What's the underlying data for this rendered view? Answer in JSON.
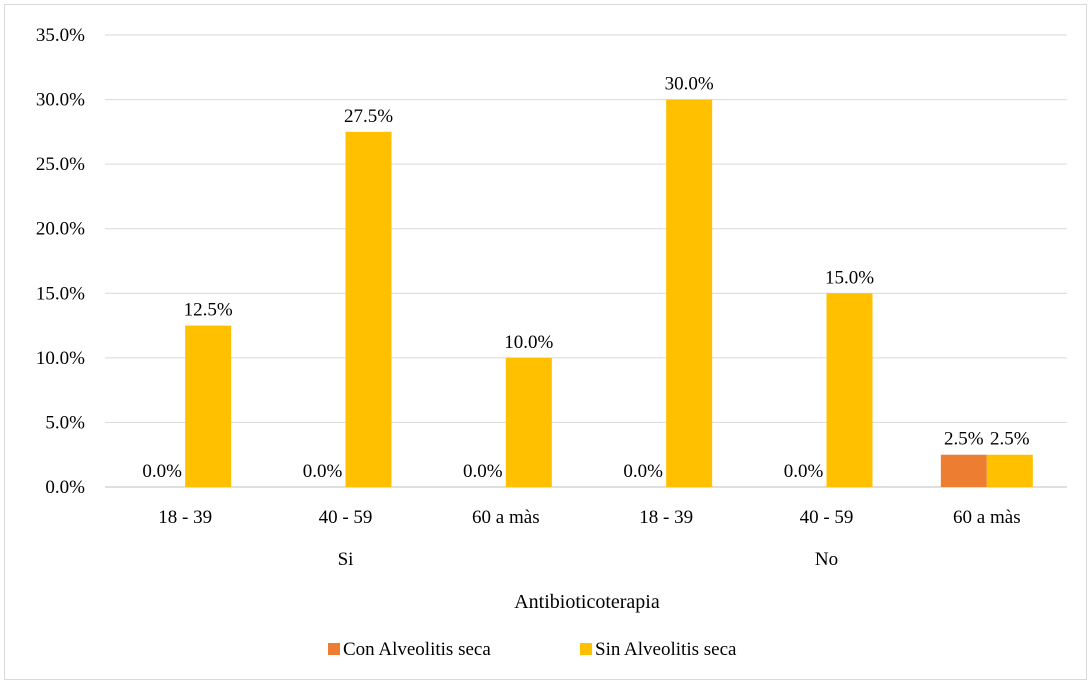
{
  "chart_data": {
    "type": "bar",
    "xlabel": "Antibioticoterapia",
    "ylabel": "",
    "ylim": [
      0,
      35
    ],
    "yticks": [
      "0.0%",
      "5.0%",
      "10.0%",
      "15.0%",
      "20.0%",
      "25.0%",
      "30.0%",
      "35.0%"
    ],
    "y_tick_values": [
      0,
      5,
      10,
      15,
      20,
      25,
      30,
      35
    ],
    "groups": [
      {
        "label": "Si",
        "categories": [
          "18 - 39",
          "40 - 59",
          "60 a màs"
        ]
      },
      {
        "label": "No",
        "categories": [
          "18 - 39",
          "40 - 59",
          "60 a màs"
        ]
      }
    ],
    "categories": [
      "18 - 39",
      "40 - 59",
      "60 a màs",
      "18 - 39",
      "40 - 59",
      "60 a màs"
    ],
    "series": [
      {
        "name": "Con Alveolitis seca",
        "color": "#ED7D31",
        "values": [
          0.0,
          0.0,
          0.0,
          0.0,
          0.0,
          2.5
        ],
        "labels": [
          "0.0%",
          "0.0%",
          "0.0%",
          "0.0%",
          "0.0%",
          "2.5%"
        ]
      },
      {
        "name": "Sin Alveolitis seca",
        "color": "#FFC000",
        "values": [
          12.5,
          27.5,
          10.0,
          30.0,
          15.0,
          2.5
        ],
        "labels": [
          "12.5%",
          "27.5%",
          "10.0%",
          "30.0%",
          "15.0%",
          "2.5%"
        ]
      }
    ],
    "grid": true,
    "legend_position": "bottom"
  }
}
